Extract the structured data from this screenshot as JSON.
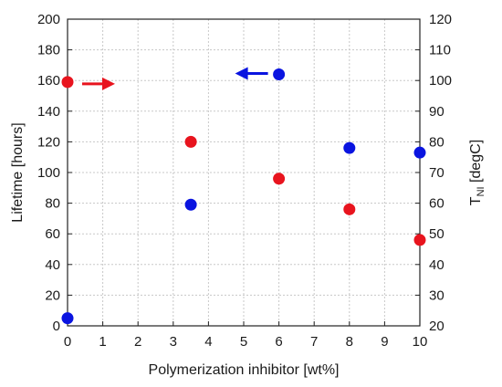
{
  "chart_data": {
    "type": "scatter",
    "xlabel": "Polymerization inhibitor [wt%]",
    "ylabel_left": "Lifetime [hours]",
    "ylabel_right_main": "T",
    "ylabel_right_sub": "NI",
    "ylabel_right_unit": " [degC]",
    "xlim": [
      0,
      10
    ],
    "ylim_left": [
      0,
      200
    ],
    "ylim_right": [
      20,
      120
    ],
    "x_ticks": [
      0,
      1,
      2,
      3,
      4,
      5,
      6,
      7,
      8,
      9,
      10
    ],
    "y_left_ticks": [
      0,
      20,
      40,
      60,
      80,
      100,
      120,
      140,
      160,
      180,
      200
    ],
    "y_right_ticks": [
      20,
      30,
      40,
      50,
      60,
      70,
      80,
      90,
      100,
      110,
      120
    ],
    "grid": true,
    "series": [
      {
        "axis": "left",
        "color": "#0a14e0",
        "points": [
          {
            "x": 0,
            "y": 5
          },
          {
            "x": 3.5,
            "y": 79
          },
          {
            "x": 6,
            "y": 164
          },
          {
            "x": 8,
            "y": 116
          },
          {
            "x": 10,
            "y": 113
          }
        ]
      },
      {
        "axis": "right",
        "color": "#e8141e",
        "points": [
          {
            "x": 0,
            "y": 99.5
          },
          {
            "x": 3.5,
            "y": 80
          },
          {
            "x": 6,
            "y": 68
          },
          {
            "x": 8,
            "y": 58
          },
          {
            "x": 10,
            "y": 48
          }
        ]
      }
    ],
    "annotations": [
      {
        "series": "right",
        "shape": "arrow-right",
        "color": "#e8141e"
      },
      {
        "series": "left",
        "shape": "arrow-left",
        "color": "#0a14e0"
      }
    ]
  }
}
